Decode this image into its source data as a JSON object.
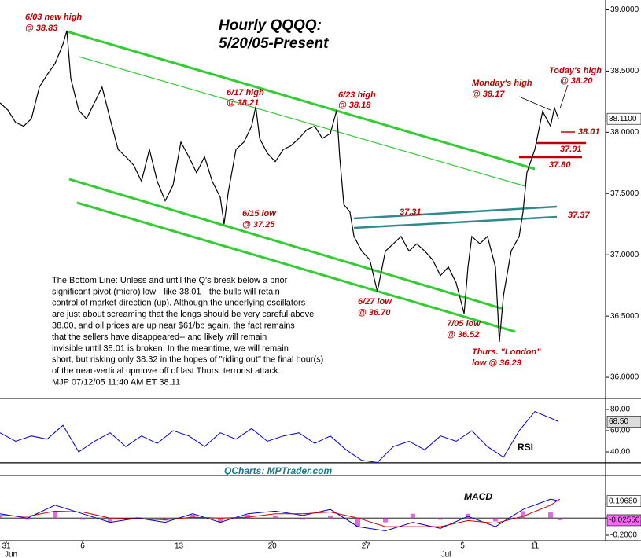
{
  "chart_data": [
    {
      "type": "line",
      "title": "Hourly QQQQ:",
      "subtitle": "5/20/05-Present",
      "color": "#000000",
      "x": [
        0,
        2.9,
        5.7,
        8.6,
        11.4,
        14.3,
        17.1,
        20,
        22.9,
        24.3,
        25.7,
        28.6,
        31.4,
        34.3,
        37.1,
        40,
        42.9,
        45.7,
        48.6,
        51.4,
        54.3,
        57.1,
        60,
        62.9,
        65.7,
        68.6,
        71.4,
        74.3,
        77.1,
        80,
        81.4,
        82.9,
        85.7,
        88.6,
        91.4,
        92.9,
        94.3,
        97.1,
        100,
        102.9,
        105.7,
        108.6,
        111.4,
        114.3,
        117.1,
        120,
        122.3,
        123.4,
        124.9,
        127.1,
        128.6,
        131.4,
        134.3,
        137.1,
        140,
        142.9,
        145.7,
        148.6,
        151.4,
        154.3,
        157.1,
        160,
        162.9,
        165.7,
        168.6,
        170,
        171.4,
        174.3,
        177.1,
        180,
        181.4,
        182.9,
        185.7,
        188.6,
        190,
        191.4,
        194.3,
        197.1,
        200,
        201.4,
        202.9
      ],
      "values": [
        38.24,
        38.18,
        38.08,
        38.05,
        38.11,
        38.37,
        38.47,
        38.56,
        38.72,
        38.83,
        38.44,
        38.18,
        38.11,
        38.24,
        38.37,
        38.11,
        37.86,
        37.8,
        37.73,
        37.6,
        37.86,
        37.6,
        37.44,
        37.57,
        37.92,
        37.8,
        37.67,
        37.8,
        37.6,
        37.47,
        37.25,
        37.51,
        37.86,
        37.92,
        38.05,
        38.21,
        37.95,
        37.83,
        37.76,
        37.86,
        37.89,
        37.95,
        38.02,
        38.05,
        37.95,
        37.99,
        38.18,
        37.8,
        37.41,
        37.35,
        37.15,
        37.03,
        36.96,
        36.7,
        37.03,
        37.09,
        37.15,
        37.03,
        37.09,
        37.03,
        36.96,
        36.83,
        36.9,
        36.77,
        36.52,
        36.9,
        37.15,
        37.09,
        37.15,
        36.9,
        36.29,
        36.67,
        37.03,
        37.15,
        37.35,
        37.67,
        37.86,
        38.17,
        38.05,
        38.2,
        38.11
      ],
      "last_label": "38.1100",
      "xlim": [
        0,
        220
      ],
      "ylim": [
        35.84,
        39.08
      ],
      "yticks": [
        {
          "value": 39,
          "label": "39.0000"
        },
        {
          "value": 38.5,
          "label": "38.5000"
        },
        {
          "value": 38,
          "label": "38.0000"
        },
        {
          "value": 37.5,
          "label": "37.5000"
        },
        {
          "value": 37,
          "label": "37.0000"
        },
        {
          "value": 36.5,
          "label": "36.5000"
        },
        {
          "value": 36,
          "label": "36.0000"
        }
      ],
      "annotations": [
        "6/03 new high",
        "@ 38.83",
        "6/17 high",
        "@ 38.21",
        "6/23 high",
        "@ 38.18",
        "6/15 low",
        "@ 37.25",
        "37.31",
        "6/27 low",
        "@ 36.70",
        "7/05 low",
        "@ 36.52",
        "Thurs. \"London\"",
        "low @ 36.29",
        "Monday's high",
        "@ 38.17",
        "Today's high",
        "@ 38.20",
        "38.01",
        "37.91",
        "37.80",
        "37.37"
      ],
      "notes": [
        "The Bottom Line: Unless and until the Q's break below a prior",
        "significant pivot (micro) low-- like 38.01-- the bulls will retain",
        "control of market direction (up). Although the underlying oscillators",
        "are just about screaming that the longs should be very careful above",
        "38.00, and oil prices are up near $61/bb again, the fact remains",
        "that the sellers have disappeared-- and likely  will remain",
        "invisible until 38.01 is broken. In the meantime, we will remain",
        "short, but risking only 38.32 in the hopes of \"riding out\" the final hour(s)",
        "of the near-vertical upmove off of last Thurs. terrorist attack.",
        "MJP 07/12/05 11:40 AM ET 38.11"
      ]
    },
    {
      "type": "line",
      "title": "RSI",
      "source": "QCharts: MPTrader.com",
      "color": "#0000cc",
      "x": [
        0,
        5.7,
        11.4,
        17.1,
        22.9,
        28.6,
        34.3,
        40,
        45.7,
        51.4,
        57.1,
        62.9,
        68.6,
        74.3,
        80,
        85.7,
        91.4,
        97.1,
        102.9,
        108.6,
        114.3,
        120,
        125.7,
        131.4,
        137.1,
        142.9,
        148.6,
        154.3,
        160,
        165.7,
        171.4,
        177.1,
        182.9,
        188.6,
        194.3,
        200,
        202.9
      ],
      "values": [
        58,
        50,
        55,
        52,
        65,
        40,
        50,
        58,
        45,
        55,
        48,
        60,
        55,
        45,
        58,
        52,
        62,
        50,
        55,
        58,
        48,
        55,
        42,
        32,
        30,
        45,
        50,
        42,
        55,
        50,
        60,
        45,
        35,
        60,
        78,
        72,
        68.5
      ],
      "last_label": "68.50",
      "levels": [
        70,
        30
      ],
      "xlim": [
        0,
        220
      ],
      "ylim": [
        28.9,
        88.1
      ],
      "yticks": [
        {
          "value": 80,
          "label": "80.00"
        },
        {
          "value": 60,
          "label": "60.00"
        },
        {
          "value": 40,
          "label": "40.00"
        }
      ]
    },
    {
      "type": "line",
      "title": "MACD",
      "x": [
        0,
        10,
        20,
        30,
        40,
        50,
        60,
        70,
        80,
        90,
        100,
        110,
        120,
        130,
        140,
        150,
        160,
        170,
        180,
        190,
        200,
        203.4
      ],
      "series": [
        {
          "color": "#0000cc",
          "values": [
            0.05,
            0,
            0.15,
            0.05,
            -0.05,
            0,
            -0.05,
            0.05,
            -0.05,
            0.05,
            0.08,
            0.03,
            0.1,
            -0.1,
            -0.15,
            -0.05,
            -0.12,
            0.02,
            -0.1,
            0.1,
            0.22,
            0.1968
          ],
          "last_label": "0.19680"
        },
        {
          "color": "#cc0000",
          "values": [
            0.03,
            0.02,
            0.08,
            0.07,
            0,
            -0.01,
            -0.02,
            0.01,
            0,
            0.01,
            0.05,
            0.05,
            0.07,
            0,
            -0.1,
            -0.1,
            -0.1,
            -0.03,
            -0.06,
            0.02,
            0.15,
            0.22
          ]
        }
      ],
      "histogram": {
        "color": "#cc33cc",
        "values": [
          0.02,
          -0.02,
          0.07,
          -0.02,
          -0.05,
          0.01,
          -0.03,
          0.04,
          -0.05,
          0.04,
          0.03,
          -0.02,
          0.03,
          -0.1,
          -0.05,
          0.05,
          -0.02,
          0.05,
          -0.04,
          0.08,
          0.07,
          -0.0255
        ],
        "last_label": "-0.02550"
      },
      "xlim": [
        0,
        220
      ],
      "ylim": [
        -0.264,
        0.496
      ],
      "yticks": [
        {
          "value": 0,
          "label": ""
        },
        {
          "value": -0.2,
          "label": "-0.2000"
        }
      ],
      "xticks": [
        {
          "value": 2.3,
          "label": "31"
        },
        {
          "value": 30,
          "label": "6"
        },
        {
          "value": 65,
          "label": "13"
        },
        {
          "value": 98.9,
          "label": "20"
        },
        {
          "value": 132.9,
          "label": "27"
        },
        {
          "value": 168,
          "label": "5"
        },
        {
          "value": 194.3,
          "label": "11"
        }
      ],
      "months": [
        {
          "value": 4,
          "label": "Jun"
        },
        {
          "value": 162,
          "label": "Jul"
        }
      ]
    }
  ]
}
